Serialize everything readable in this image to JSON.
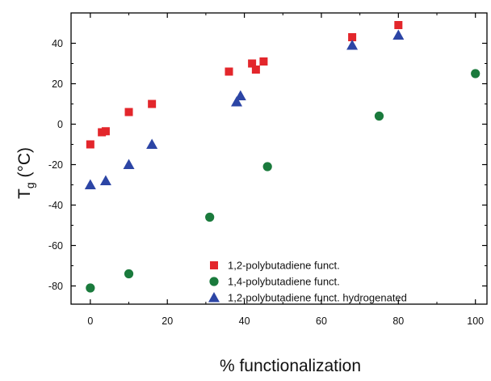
{
  "chart_data": {
    "type": "scatter",
    "xlabel": "% functionalization",
    "ylabel_main": "T",
    "ylabel_sub": "g",
    "ylabel_unit": " (°C)",
    "xlim": [
      -5,
      103
    ],
    "ylim": [
      -89,
      55
    ],
    "x_ticks": [
      0,
      20,
      40,
      60,
      80,
      100
    ],
    "y_ticks": [
      -80,
      -60,
      -40,
      -20,
      0,
      20,
      40
    ],
    "x_tick_labels": [
      "0",
      "20",
      "40",
      "60",
      "80",
      "100"
    ],
    "y_tick_labels": [
      "-80",
      "-60",
      "-40",
      "-20",
      "0",
      "20",
      "40"
    ],
    "grid": false,
    "legend_position": "bottom-right",
    "series": [
      {
        "name": "1,2-polybutadiene funct.",
        "marker": "square",
        "color": "#e3262b",
        "points": [
          [
            0,
            -10
          ],
          [
            3,
            -4
          ],
          [
            4,
            -3.5
          ],
          [
            10,
            6
          ],
          [
            16,
            10
          ],
          [
            36,
            26
          ],
          [
            42,
            30
          ],
          [
            43,
            27
          ],
          [
            45,
            31
          ],
          [
            68,
            43
          ],
          [
            80,
            49
          ]
        ]
      },
      {
        "name": "1,4-polybutadiene funct.",
        "marker": "circle",
        "color": "#1a7a3c",
        "points": [
          [
            0,
            -81
          ],
          [
            10,
            -74
          ],
          [
            31,
            -46
          ],
          [
            46,
            -21
          ],
          [
            75,
            4
          ],
          [
            100,
            25
          ]
        ]
      },
      {
        "name": "1,2-polybutadiene funct. hydrogenated",
        "marker": "triangle",
        "color": "#2c45a5",
        "points": [
          [
            0,
            -30
          ],
          [
            4,
            -28
          ],
          [
            10,
            -20
          ],
          [
            16,
            -10
          ],
          [
            38,
            11
          ],
          [
            39,
            14
          ],
          [
            68,
            39
          ],
          [
            80,
            44
          ]
        ]
      }
    ]
  }
}
